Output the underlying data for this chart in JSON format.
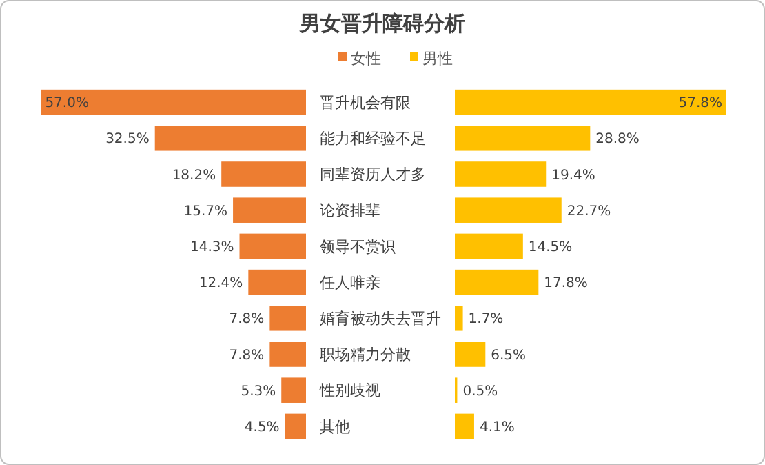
{
  "chart_data": [
    {
      "type": "bar",
      "orientation": "horizontal",
      "title": "男女晋升障碍分析",
      "legend": "top",
      "categories": [
        "晋升机会有限",
        "能力和经验不足",
        "同辈资历人才多",
        "论资排辈",
        "领导不赏识",
        "任人唯亲",
        "婚育被动失去晋升",
        "职场精力分散",
        "性别歧视",
        "其他"
      ],
      "series": [
        {
          "name": "女性",
          "color": "#ed7d31",
          "values": [
            57.0,
            32.5,
            18.2,
            15.7,
            14.3,
            12.4,
            7.8,
            7.8,
            5.3,
            4.5
          ],
          "value_labels": [
            "57.0%",
            "32.5%",
            "18.2%",
            "15.7%",
            "14.3%",
            "12.4%",
            "7.8%",
            "7.8%",
            "5.3%",
            "4.5%"
          ]
        }
      ]
    },
    {
      "type": "bar",
      "orientation": "horizontal",
      "legend": "top",
      "categories": [
        null,
        null,
        null,
        null,
        null,
        null,
        null,
        null,
        null,
        null
      ],
      "series": [
        {
          "name": "男性",
          "color": "#ffc000",
          "values": [
            57.8,
            28.8,
            19.4,
            22.7,
            14.5,
            17.8,
            1.7,
            6.5,
            0.5,
            4.1
          ],
          "value_labels": [
            "57.8%",
            "28.8%",
            "19.4%",
            "22.7%",
            "14.5%",
            "17.8%",
            "1.7%",
            "6.5%",
            "0.5%",
            "4.1%"
          ]
        }
      ]
    }
  ]
}
